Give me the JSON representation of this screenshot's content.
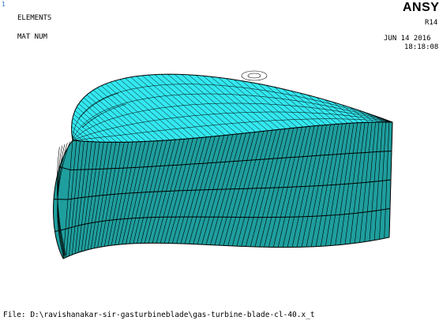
{
  "window_number": "1",
  "plot_labels": {
    "plot_type": "ELEMENTS",
    "numbering": "MAT  NUM"
  },
  "logo": {
    "text": "ANSYS",
    "release": "R14"
  },
  "timestamp": {
    "date": "JUN 14 2016",
    "time": "18:18:08"
  },
  "file_path": "File: D:\\ravishanakar-sir-gasturbineblade\\gas-turbine-blade-cl-40.x_t",
  "colors": {
    "background": "#ffffff",
    "side_face": "#1f9e9e",
    "top_face": "#33e8f0",
    "mesh_lines": "#000000",
    "window_number": "#2d6fd6"
  },
  "model": {
    "description_icon": "turbine-blade-mesh"
  }
}
